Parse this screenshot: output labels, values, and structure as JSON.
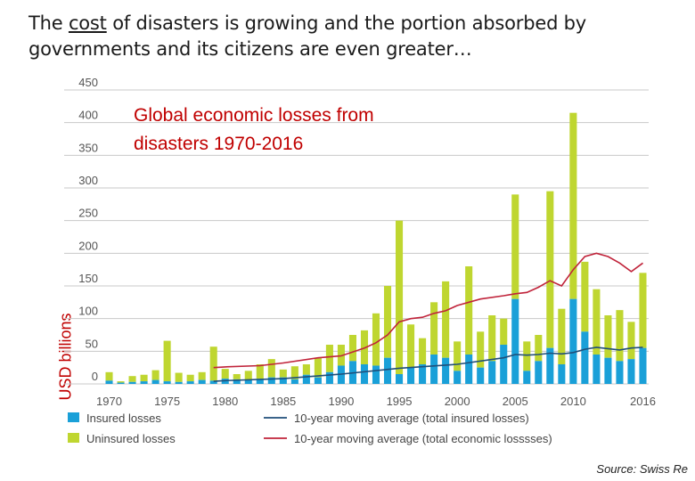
{
  "headline": {
    "part1": "The ",
    "underlined": "cost",
    "part2": " of disasters is growing and the portion absorbed by governments and its citizens are even greater…"
  },
  "source": "Source: Swiss Re",
  "chart_data": {
    "type": "bar",
    "title": "Global economic losses from disasters 1970-2016",
    "ylabel": "USD billions",
    "ylim": [
      0,
      450
    ],
    "yticks": [
      0,
      50,
      100,
      150,
      200,
      250,
      300,
      350,
      400,
      450
    ],
    "xtick_labels": [
      "1970",
      "1975",
      "1980",
      "1985",
      "1990",
      "1995",
      "2000",
      "2005",
      "2010",
      "2016"
    ],
    "grid": true,
    "stacked": true,
    "legend_position": "bottom",
    "colors": {
      "insured": "#1aa0d8",
      "uninsured": "#bfd630",
      "avg_insured": "#1f4e79",
      "avg_total": "#c0233a"
    },
    "categories": [
      1970,
      1971,
      1972,
      1973,
      1974,
      1975,
      1976,
      1977,
      1978,
      1979,
      1980,
      1981,
      1982,
      1983,
      1984,
      1985,
      1986,
      1987,
      1988,
      1989,
      1990,
      1991,
      1992,
      1993,
      1994,
      1995,
      1996,
      1997,
      1998,
      1999,
      2000,
      2001,
      2002,
      2003,
      2004,
      2005,
      2006,
      2007,
      2008,
      2009,
      2010,
      2011,
      2012,
      2013,
      2014,
      2015,
      2016
    ],
    "series": [
      {
        "name": "Insured losses",
        "values": [
          5,
          2,
          3,
          4,
          6,
          4,
          3,
          4,
          6,
          5,
          8,
          7,
          6,
          8,
          10,
          10,
          7,
          14,
          10,
          18,
          28,
          35,
          30,
          28,
          40,
          15,
          25,
          30,
          45,
          40,
          20,
          45,
          25,
          35,
          60,
          130,
          20,
          35,
          55,
          30,
          130,
          80,
          45,
          40,
          35,
          38,
          55
        ]
      },
      {
        "name": "Uninsured losses",
        "values": [
          13,
          2,
          9,
          10,
          15,
          62,
          14,
          10,
          12,
          52,
          15,
          8,
          14,
          22,
          28,
          12,
          20,
          16,
          30,
          42,
          32,
          40,
          52,
          80,
          110,
          235,
          66,
          40,
          80,
          117,
          45,
          135,
          55,
          70,
          40,
          160,
          45,
          40,
          240,
          85,
          285,
          107,
          100,
          65,
          78,
          57,
          115
        ]
      },
      {
        "name": "10-year moving average (total insured losses)",
        "x": [
          1979,
          1980,
          1985,
          1990,
          1995,
          2000,
          2004,
          2005,
          2006,
          2007,
          2008,
          2009,
          2010,
          2011,
          2012,
          2013,
          2014,
          2015,
          2016
        ],
        "values": [
          4,
          5,
          8,
          15,
          24,
          30,
          40,
          45,
          44,
          45,
          47,
          46,
          48,
          53,
          56,
          54,
          52,
          55,
          56
        ]
      },
      {
        "name": "10-year moving average (total economic losssses)",
        "x": [
          1979,
          1980,
          1983,
          1985,
          1988,
          1990,
          1992,
          1993,
          1994,
          1995,
          1996,
          1997,
          1998,
          1999,
          2000,
          2002,
          2004,
          2005,
          2006,
          2007,
          2008,
          2009,
          2010,
          2011,
          2012,
          2013,
          2014,
          2015,
          2016
        ],
        "values": [
          25,
          26,
          28,
          32,
          40,
          43,
          55,
          63,
          75,
          95,
          100,
          102,
          108,
          112,
          120,
          130,
          135,
          138,
          140,
          148,
          158,
          150,
          175,
          195,
          200,
          195,
          185,
          172,
          185
        ]
      }
    ]
  }
}
